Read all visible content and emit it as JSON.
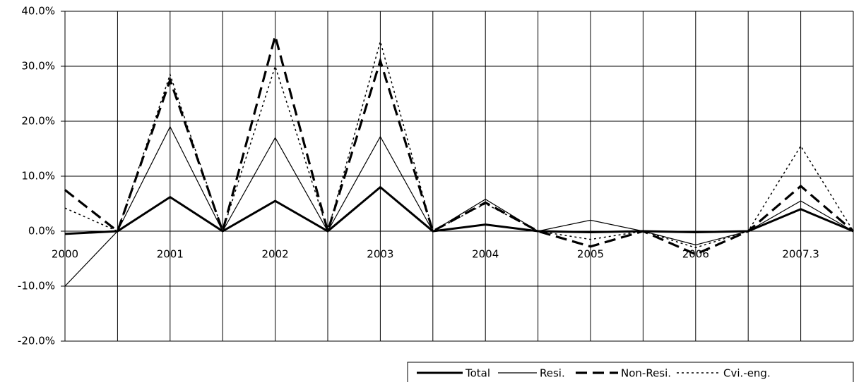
{
  "chart_data": {
    "type": "line",
    "categories": [
      "2000",
      null,
      "2001",
      null,
      "2002",
      null,
      "2003",
      null,
      "2004",
      null,
      "2005",
      null,
      "2006",
      null,
      "2007.3",
      null
    ],
    "series": [
      {
        "name": "Total",
        "color": "#000000",
        "style": "bold",
        "values": [
          -0.5,
          0,
          6.2,
          0,
          5.5,
          0,
          8.0,
          0,
          1.2,
          0,
          -0.2,
          0,
          -0.2,
          0,
          4.0,
          0
        ]
      },
      {
        "name": "Resi.",
        "color": "#000000",
        "style": "thin",
        "values": [
          -10,
          0,
          19,
          0,
          17,
          0,
          17.2,
          0,
          5.8,
          0,
          2.0,
          0,
          -2.5,
          0,
          5.5,
          0
        ]
      },
      {
        "name": "Non-Resi.",
        "color": "#000000",
        "style": "bold-dashed",
        "values": [
          7.5,
          0,
          27.5,
          0,
          35.5,
          0,
          31,
          0,
          5.2,
          0,
          -2.8,
          0,
          -4.2,
          0,
          8.2,
          0
        ]
      },
      {
        "name": "Cvi.-eng.",
        "color": "#000000",
        "style": "dotted",
        "values": [
          4.2,
          0,
          28.5,
          0,
          30,
          0,
          34.5,
          0,
          5,
          0,
          -1.5,
          0,
          -3,
          0,
          15.5,
          0
        ]
      }
    ],
    "ylim": [
      -20,
      40
    ],
    "yticks": [
      {
        "value": -20,
        "label": "-20.0%"
      },
      {
        "value": -10,
        "label": "-10.0%"
      },
      {
        "value": 0,
        "label": "0.0%"
      },
      {
        "value": 10,
        "label": "10.0%"
      },
      {
        "value": 20,
        "label": "20.0%"
      },
      {
        "value": 30,
        "label": "30.0%"
      },
      {
        "value": 40,
        "label": "40.0%"
      }
    ],
    "grid": true,
    "legend": "bottom-right"
  }
}
